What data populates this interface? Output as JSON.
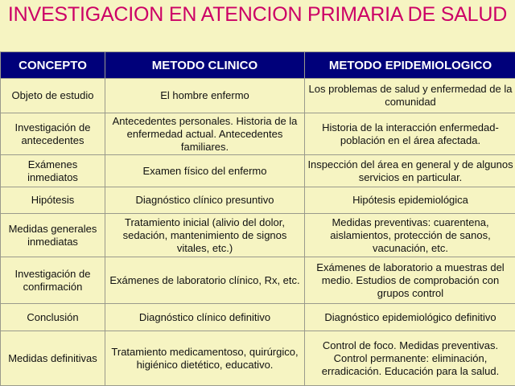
{
  "title": "INVESTIGACION EN ATENCION PRIMARIA DE SALUD",
  "headers": [
    "CONCEPTO",
    "METODO CLINICO",
    "METODO EPIDEMIOLOGICO"
  ],
  "rows": [
    [
      "Objeto de estudio",
      "El hombre enfermo",
      "Los problemas de salud y enfermedad de la comunidad"
    ],
    [
      "Investigación de antecedentes",
      "Antecedentes personales. Historia de la enfermedad actual. Antecedentes familiares.",
      "Historia de la interacción enfermedad-población en el área afectada."
    ],
    [
      "Exámenes inmediatos",
      "Examen físico del enfermo",
      "Inspección del área en general y de algunos servicios en particular."
    ],
    [
      "Hipótesis",
      "Diagnóstico clínico presuntivo",
      "Hipótesis epidemiológica"
    ],
    [
      "Medidas generales inmediatas",
      "Tratamiento inicial (alivio del dolor, sedación, mantenimiento de signos vitales, etc.)",
      "Medidas preventivas: cuarentena, aislamientos, protección de sanos, vacunación, etc."
    ],
    [
      "Investigación de confirmación",
      "Exámenes de laboratorio clínico, Rx, etc.",
      "Exámenes de laboratorio a muestras del medio. Estudios de comprobación con grupos control"
    ],
    [
      "Conclusión",
      "Diagnóstico clínico definitivo",
      "Diagnóstico epidemiológico definitivo"
    ],
    [
      "Medidas definitivas",
      "Tratamiento medicamentoso, quirúrgico, higiénico dietético, educativo.",
      "Control de foco. Medidas preventivas. Control permanente: eliminación, erradicación. Educación para la salud."
    ]
  ]
}
